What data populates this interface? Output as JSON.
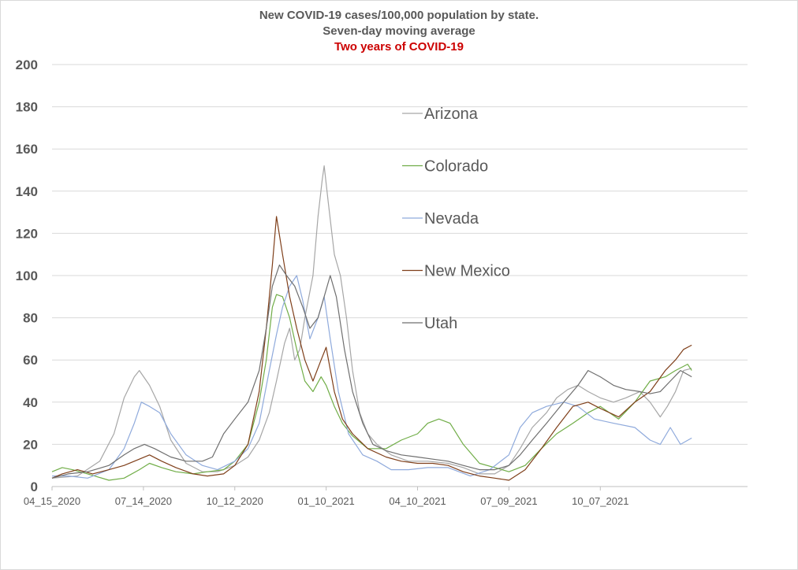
{
  "chart_data": {
    "type": "line",
    "title": "New COVID-19 cases/100,000 population by state.",
    "subtitle": "Seven-day moving average",
    "subtitle2": "Two years of COVID-19",
    "xlabel": "",
    "ylabel": "",
    "ylim": [
      0,
      200
    ],
    "yticks": [
      0,
      20,
      40,
      60,
      80,
      100,
      120,
      140,
      160,
      180,
      200
    ],
    "xlim": [
      "2020-04-15",
      "2022-03-01"
    ],
    "xticks": [
      {
        "date": "2020-04-15",
        "label": "04_15_2020"
      },
      {
        "date": "2020-07-14",
        "label": "07_14_2020"
      },
      {
        "date": "2020-10-12",
        "label": "10_12_2020"
      },
      {
        "date": "2021-01-10",
        "label": "01_10_2021"
      },
      {
        "date": "2021-04-10",
        "label": "04_10_2021"
      },
      {
        "date": "2021-07-09",
        "label": "07_09_2021"
      },
      {
        "date": "2021-10-07",
        "label": "10_07_2021"
      }
    ],
    "grid": true,
    "legend_position": "inside-center",
    "series": [
      {
        "name": "Arizona",
        "color": "#a6a6a6",
        "points": [
          [
            "2020-04-15",
            4
          ],
          [
            "2020-05-10",
            5
          ],
          [
            "2020-06-01",
            12
          ],
          [
            "2020-06-15",
            25
          ],
          [
            "2020-06-25",
            42
          ],
          [
            "2020-07-05",
            52
          ],
          [
            "2020-07-10",
            55
          ],
          [
            "2020-07-20",
            48
          ],
          [
            "2020-07-30",
            38
          ],
          [
            "2020-08-10",
            22
          ],
          [
            "2020-08-25",
            11
          ],
          [
            "2020-09-10",
            7
          ],
          [
            "2020-09-25",
            7
          ],
          [
            "2020-10-12",
            10
          ],
          [
            "2020-10-25",
            14
          ],
          [
            "2020-11-05",
            22
          ],
          [
            "2020-11-15",
            35
          ],
          [
            "2020-11-22",
            50
          ],
          [
            "2020-11-30",
            68
          ],
          [
            "2020-12-05",
            75
          ],
          [
            "2020-12-10",
            60
          ],
          [
            "2020-12-15",
            65
          ],
          [
            "2020-12-20",
            80
          ],
          [
            "2020-12-28",
            100
          ],
          [
            "2021-01-02",
            128
          ],
          [
            "2021-01-06",
            145
          ],
          [
            "2021-01-08",
            152
          ],
          [
            "2021-01-12",
            135
          ],
          [
            "2021-01-18",
            110
          ],
          [
            "2021-01-24",
            100
          ],
          [
            "2021-01-30",
            80
          ],
          [
            "2021-02-05",
            55
          ],
          [
            "2021-02-12",
            35
          ],
          [
            "2021-02-20",
            25
          ],
          [
            "2021-03-01",
            20
          ],
          [
            "2021-03-15",
            15
          ],
          [
            "2021-04-01",
            12
          ],
          [
            "2021-04-20",
            12
          ],
          [
            "2021-05-10",
            11
          ],
          [
            "2021-05-25",
            9
          ],
          [
            "2021-06-10",
            6
          ],
          [
            "2021-06-25",
            6
          ],
          [
            "2021-07-09",
            10
          ],
          [
            "2021-07-20",
            18
          ],
          [
            "2021-08-01",
            28
          ],
          [
            "2021-08-15",
            35
          ],
          [
            "2021-08-25",
            42
          ],
          [
            "2021-09-05",
            46
          ],
          [
            "2021-09-15",
            48
          ],
          [
            "2021-09-25",
            45
          ],
          [
            "2021-10-07",
            42
          ],
          [
            "2021-10-20",
            40
          ],
          [
            "2021-11-01",
            42
          ],
          [
            "2021-11-15",
            45
          ],
          [
            "2021-11-25",
            40
          ],
          [
            "2021-12-05",
            33
          ],
          [
            "2021-12-12",
            38
          ],
          [
            "2021-12-20",
            45
          ],
          [
            "2021-12-28",
            55
          ],
          [
            "2022-01-05",
            56
          ]
        ]
      },
      {
        "name": "Colorado",
        "color": "#70ad47",
        "points": [
          [
            "2020-04-15",
            7
          ],
          [
            "2020-04-25",
            9
          ],
          [
            "2020-05-05",
            8
          ],
          [
            "2020-05-20",
            6
          ],
          [
            "2020-06-10",
            3
          ],
          [
            "2020-06-25",
            4
          ],
          [
            "2020-07-10",
            8
          ],
          [
            "2020-07-20",
            11
          ],
          [
            "2020-08-01",
            9
          ],
          [
            "2020-08-15",
            7
          ],
          [
            "2020-09-01",
            6
          ],
          [
            "2020-09-15",
            7
          ],
          [
            "2020-10-01",
            8
          ],
          [
            "2020-10-12",
            12
          ],
          [
            "2020-10-25",
            20
          ],
          [
            "2020-11-05",
            40
          ],
          [
            "2020-11-12",
            60
          ],
          [
            "2020-11-18",
            85
          ],
          [
            "2020-11-22",
            91
          ],
          [
            "2020-11-28",
            90
          ],
          [
            "2020-12-05",
            80
          ],
          [
            "2020-12-12",
            65
          ],
          [
            "2020-12-20",
            50
          ],
          [
            "2020-12-28",
            45
          ],
          [
            "2021-01-05",
            52
          ],
          [
            "2021-01-10",
            48
          ],
          [
            "2021-01-18",
            38
          ],
          [
            "2021-01-26",
            30
          ],
          [
            "2021-02-05",
            24
          ],
          [
            "2021-02-20",
            18
          ],
          [
            "2021-03-10",
            18
          ],
          [
            "2021-03-25",
            22
          ],
          [
            "2021-04-10",
            25
          ],
          [
            "2021-04-20",
            30
          ],
          [
            "2021-05-01",
            32
          ],
          [
            "2021-05-12",
            30
          ],
          [
            "2021-05-25",
            20
          ],
          [
            "2021-06-10",
            11
          ],
          [
            "2021-06-25",
            9
          ],
          [
            "2021-07-09",
            7
          ],
          [
            "2021-07-25",
            10
          ],
          [
            "2021-08-10",
            18
          ],
          [
            "2021-08-25",
            25
          ],
          [
            "2021-09-10",
            30
          ],
          [
            "2021-09-25",
            35
          ],
          [
            "2021-10-07",
            38
          ],
          [
            "2021-10-25",
            32
          ],
          [
            "2021-11-10",
            40
          ],
          [
            "2021-11-25",
            50
          ],
          [
            "2021-12-10",
            52
          ],
          [
            "2021-12-20",
            55
          ],
          [
            "2022-01-01",
            58
          ],
          [
            "2022-01-05",
            55
          ]
        ]
      },
      {
        "name": "Nevada",
        "color": "#8faadc",
        "points": [
          [
            "2020-04-15",
            5
          ],
          [
            "2020-05-01",
            5
          ],
          [
            "2020-05-20",
            4
          ],
          [
            "2020-06-10",
            8
          ],
          [
            "2020-06-25",
            18
          ],
          [
            "2020-07-05",
            30
          ],
          [
            "2020-07-12",
            40
          ],
          [
            "2020-07-20",
            38
          ],
          [
            "2020-07-30",
            35
          ],
          [
            "2020-08-10",
            25
          ],
          [
            "2020-08-25",
            15
          ],
          [
            "2020-09-10",
            10
          ],
          [
            "2020-09-25",
            8
          ],
          [
            "2020-10-12",
            12
          ],
          [
            "2020-10-25",
            18
          ],
          [
            "2020-11-05",
            30
          ],
          [
            "2020-11-15",
            55
          ],
          [
            "2020-11-22",
            72
          ],
          [
            "2020-11-28",
            85
          ],
          [
            "2020-12-05",
            95
          ],
          [
            "2020-12-12",
            100
          ],
          [
            "2020-12-18",
            88
          ],
          [
            "2020-12-25",
            70
          ],
          [
            "2021-01-02",
            80
          ],
          [
            "2021-01-08",
            90
          ],
          [
            "2021-01-14",
            70
          ],
          [
            "2021-01-22",
            45
          ],
          [
            "2021-02-01",
            25
          ],
          [
            "2021-02-15",
            15
          ],
          [
            "2021-03-01",
            12
          ],
          [
            "2021-03-15",
            8
          ],
          [
            "2021-04-01",
            8
          ],
          [
            "2021-04-20",
            9
          ],
          [
            "2021-05-10",
            9
          ],
          [
            "2021-06-01",
            5
          ],
          [
            "2021-06-20",
            8
          ],
          [
            "2021-07-09",
            15
          ],
          [
            "2021-07-20",
            28
          ],
          [
            "2021-08-01",
            35
          ],
          [
            "2021-08-15",
            38
          ],
          [
            "2021-09-01",
            40
          ],
          [
            "2021-09-15",
            38
          ],
          [
            "2021-10-01",
            32
          ],
          [
            "2021-10-20",
            30
          ],
          [
            "2021-11-10",
            28
          ],
          [
            "2021-11-25",
            22
          ],
          [
            "2021-12-05",
            20
          ],
          [
            "2021-12-15",
            28
          ],
          [
            "2021-12-25",
            20
          ],
          [
            "2022-01-05",
            23
          ]
        ]
      },
      {
        "name": "New Mexico",
        "color": "#7f3f1a",
        "points": [
          [
            "2020-04-15",
            4
          ],
          [
            "2020-04-25",
            6
          ],
          [
            "2020-05-10",
            8
          ],
          [
            "2020-05-25",
            6
          ],
          [
            "2020-06-10",
            8
          ],
          [
            "2020-06-25",
            10
          ],
          [
            "2020-07-10",
            13
          ],
          [
            "2020-07-20",
            15
          ],
          [
            "2020-08-01",
            12
          ],
          [
            "2020-08-15",
            9
          ],
          [
            "2020-09-01",
            6
          ],
          [
            "2020-09-15",
            5
          ],
          [
            "2020-10-01",
            6
          ],
          [
            "2020-10-12",
            10
          ],
          [
            "2020-10-25",
            20
          ],
          [
            "2020-11-05",
            45
          ],
          [
            "2020-11-12",
            75
          ],
          [
            "2020-11-18",
            105
          ],
          [
            "2020-11-22",
            128
          ],
          [
            "2020-11-28",
            110
          ],
          [
            "2020-12-05",
            90
          ],
          [
            "2020-12-12",
            75
          ],
          [
            "2020-12-20",
            60
          ],
          [
            "2020-12-28",
            50
          ],
          [
            "2021-01-05",
            60
          ],
          [
            "2021-01-10",
            66
          ],
          [
            "2021-01-18",
            45
          ],
          [
            "2021-01-26",
            32
          ],
          [
            "2021-02-05",
            25
          ],
          [
            "2021-02-20",
            18
          ],
          [
            "2021-03-10",
            14
          ],
          [
            "2021-03-25",
            12
          ],
          [
            "2021-04-10",
            11
          ],
          [
            "2021-04-25",
            11
          ],
          [
            "2021-05-10",
            10
          ],
          [
            "2021-05-25",
            7
          ],
          [
            "2021-06-10",
            5
          ],
          [
            "2021-06-25",
            4
          ],
          [
            "2021-07-09",
            3
          ],
          [
            "2021-07-25",
            8
          ],
          [
            "2021-08-10",
            18
          ],
          [
            "2021-08-25",
            28
          ],
          [
            "2021-09-10",
            38
          ],
          [
            "2021-09-25",
            40
          ],
          [
            "2021-10-07",
            37
          ],
          [
            "2021-10-25",
            33
          ],
          [
            "2021-11-10",
            40
          ],
          [
            "2021-11-25",
            45
          ],
          [
            "2021-12-10",
            55
          ],
          [
            "2021-12-20",
            60
          ],
          [
            "2021-12-28",
            65
          ],
          [
            "2022-01-05",
            67
          ]
        ]
      },
      {
        "name": "Utah",
        "color": "#6f6f6f",
        "points": [
          [
            "2020-04-15",
            4
          ],
          [
            "2020-05-01",
            6
          ],
          [
            "2020-05-20",
            7
          ],
          [
            "2020-06-10",
            10
          ],
          [
            "2020-06-25",
            15
          ],
          [
            "2020-07-05",
            18
          ],
          [
            "2020-07-15",
            20
          ],
          [
            "2020-07-25",
            18
          ],
          [
            "2020-08-10",
            14
          ],
          [
            "2020-08-25",
            12
          ],
          [
            "2020-09-10",
            12
          ],
          [
            "2020-09-20",
            14
          ],
          [
            "2020-10-01",
            25
          ],
          [
            "2020-10-12",
            32
          ],
          [
            "2020-10-25",
            40
          ],
          [
            "2020-11-05",
            55
          ],
          [
            "2020-11-12",
            75
          ],
          [
            "2020-11-18",
            95
          ],
          [
            "2020-11-25",
            105
          ],
          [
            "2020-12-02",
            100
          ],
          [
            "2020-12-10",
            95
          ],
          [
            "2020-12-18",
            85
          ],
          [
            "2020-12-25",
            75
          ],
          [
            "2021-01-02",
            80
          ],
          [
            "2021-01-08",
            90
          ],
          [
            "2021-01-14",
            100
          ],
          [
            "2021-01-20",
            90
          ],
          [
            "2021-01-28",
            65
          ],
          [
            "2021-02-05",
            45
          ],
          [
            "2021-02-15",
            30
          ],
          [
            "2021-02-25",
            20
          ],
          [
            "2021-03-10",
            17
          ],
          [
            "2021-03-25",
            15
          ],
          [
            "2021-04-10",
            14
          ],
          [
            "2021-04-25",
            13
          ],
          [
            "2021-05-10",
            12
          ],
          [
            "2021-05-25",
            10
          ],
          [
            "2021-06-10",
            8
          ],
          [
            "2021-06-25",
            8
          ],
          [
            "2021-07-09",
            10
          ],
          [
            "2021-07-20",
            15
          ],
          [
            "2021-08-01",
            22
          ],
          [
            "2021-08-15",
            30
          ],
          [
            "2021-09-01",
            40
          ],
          [
            "2021-09-15",
            48
          ],
          [
            "2021-09-25",
            55
          ],
          [
            "2021-10-07",
            52
          ],
          [
            "2021-10-20",
            48
          ],
          [
            "2021-11-01",
            46
          ],
          [
            "2021-11-15",
            45
          ],
          [
            "2021-11-25",
            44
          ],
          [
            "2021-12-05",
            45
          ],
          [
            "2021-12-15",
            50
          ],
          [
            "2021-12-25",
            55
          ],
          [
            "2022-01-05",
            52
          ]
        ]
      }
    ]
  }
}
